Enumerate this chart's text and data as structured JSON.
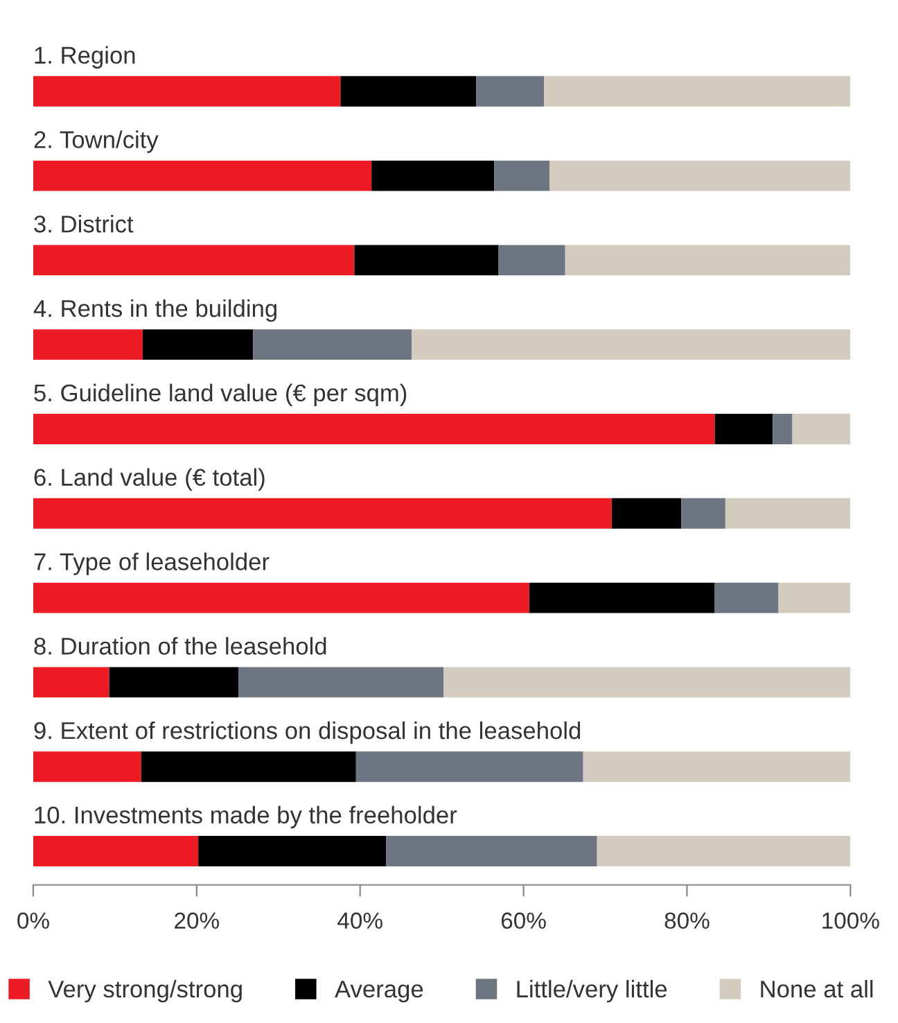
{
  "chart_data": {
    "type": "bar",
    "orientation": "horizontal",
    "stacked": true,
    "categories": [
      "1. Region",
      "2. Town/city",
      "3. District",
      "4. Rents in the building",
      "5. Guideline land value (€ per sqm)",
      "6. Land value (€ total)",
      "7. Type of leaseholder",
      "8. Duration of the leasehold",
      "9. Extent of restrictions on disposal in the leasehold",
      "10. Investments made by the freeholder"
    ],
    "series": [
      {
        "name": "Very strong/strong",
        "color": "#ed1c24",
        "values": [
          37.6,
          41.4,
          39.3,
          13.4,
          83.4,
          70.8,
          60.7,
          9.3,
          13.2,
          20.2
        ]
      },
      {
        "name": "Average",
        "color": "#000000",
        "values": [
          16.6,
          15.0,
          17.6,
          13.5,
          7.1,
          8.5,
          22.7,
          15.8,
          26.3,
          23.0
        ]
      },
      {
        "name": "Little/very little",
        "color": "#6d7680",
        "values": [
          8.3,
          6.8,
          8.2,
          19.4,
          2.4,
          5.4,
          7.8,
          25.1,
          27.8,
          25.8
        ]
      },
      {
        "name": "None at all",
        "color": "#d3cbbd",
        "values": [
          37.5,
          36.8,
          34.9,
          53.7,
          7.1,
          15.3,
          8.8,
          49.8,
          32.7,
          31.0
        ]
      }
    ],
    "xlim": [
      0,
      100
    ],
    "xticks": [
      {
        "value": 0,
        "label": "0%"
      },
      {
        "value": 20,
        "label": "20%"
      },
      {
        "value": 40,
        "label": "40%"
      },
      {
        "value": 60,
        "label": "60%"
      },
      {
        "value": 80,
        "label": "80%"
      },
      {
        "value": 100,
        "label": "100%"
      }
    ],
    "legend": "bottom",
    "grid": false
  }
}
